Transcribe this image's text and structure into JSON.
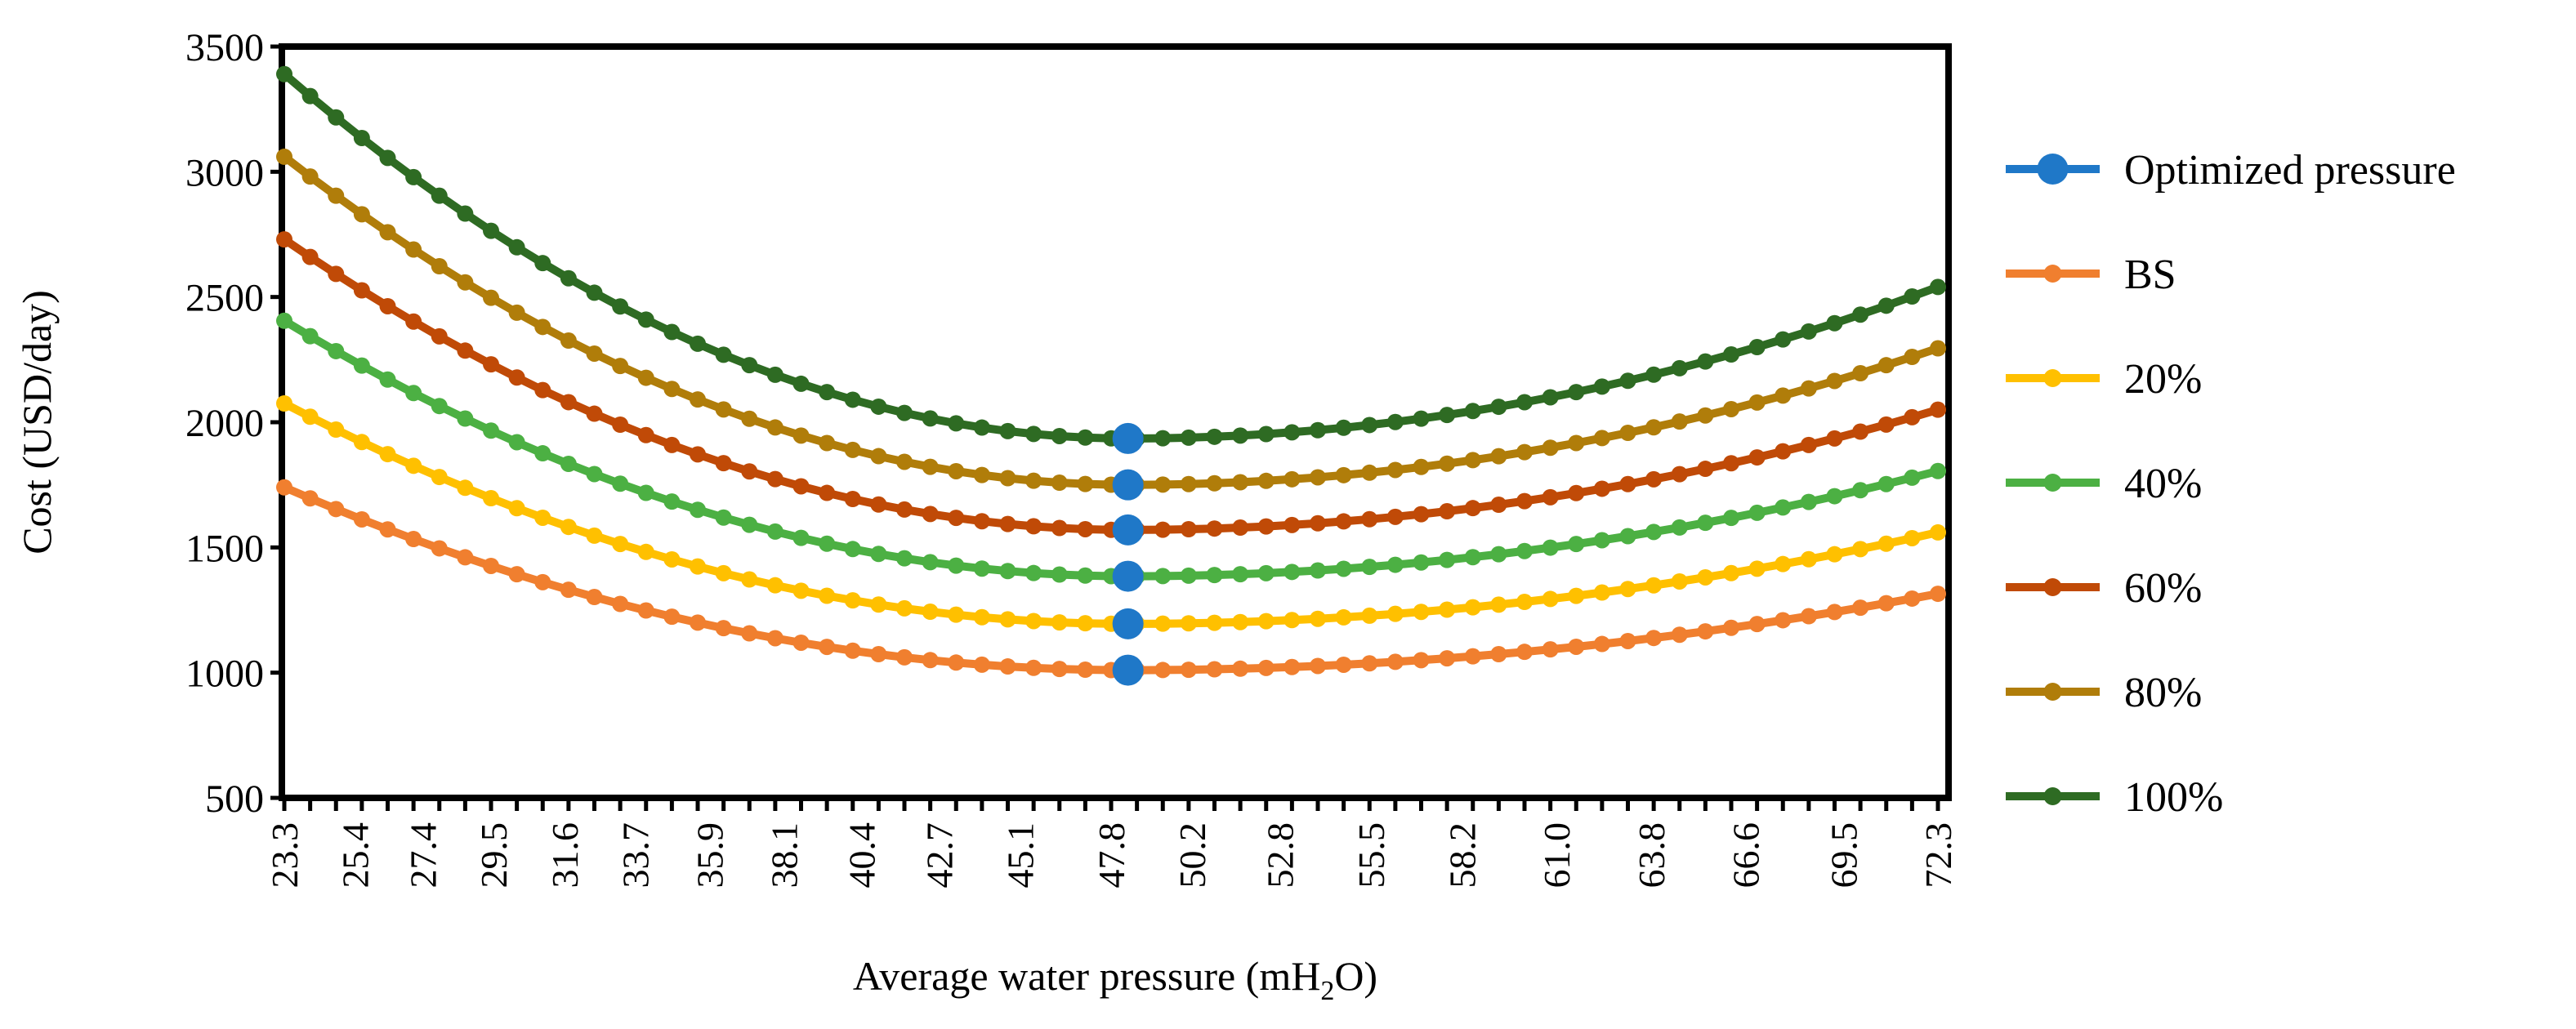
{
  "chart_data": {
    "type": "line",
    "title": "",
    "xlabel_main": "Average water pressure (mH",
    "xlabel_sub": "2",
    "xlabel_tail": "O)",
    "ylabel": "Cost (USD/day)",
    "ylim": [
      500,
      3500
    ],
    "yticks": [
      "500",
      "1000",
      "1500",
      "2000",
      "2500",
      "3000",
      "3500"
    ],
    "x_start": 23.3,
    "x_end": 72.3,
    "n_points": 65,
    "xtick_labels": [
      "23.3",
      "25.4",
      "27.4",
      "29.5",
      "31.6",
      "33.7",
      "35.9",
      "38.1",
      "40.4",
      "42.7",
      "45.1",
      "47.8",
      "50.2",
      "52.8",
      "55.5",
      "58.2",
      "61.0",
      "63.8",
      "66.6",
      "69.5",
      "72.3"
    ],
    "optimum_x": 48.3,
    "series": [
      {
        "name": "100%",
        "color": "#2e6b23",
        "start": 3390,
        "min": 1935,
        "end": 2540
      },
      {
        "name": "80%",
        "color": "#b07d0a",
        "start": 3060,
        "min": 1750,
        "end": 2295
      },
      {
        "name": "60%",
        "color": "#c04a07",
        "start": 2730,
        "min": 1570,
        "end": 2050
      },
      {
        "name": "40%",
        "color": "#4cb043",
        "start": 2405,
        "min": 1385,
        "end": 1805
      },
      {
        "name": "20%",
        "color": "#ffc000",
        "start": 2075,
        "min": 1195,
        "end": 1560
      },
      {
        "name": "BS",
        "color": "#f07f2f",
        "start": 1740,
        "min": 1010,
        "end": 1315
      }
    ],
    "optimized": {
      "name": "Optimized pressure",
      "color": "#1f78c8",
      "values": [
        1935,
        1750,
        1570,
        1385,
        1195,
        1010
      ]
    },
    "legend": {
      "position": "right",
      "entries": [
        {
          "label": "Optimized pressure",
          "color": "#1f78c8"
        },
        {
          "label": "BS",
          "color": "#f07f2f"
        },
        {
          "label": "20%",
          "color": "#ffc000"
        },
        {
          "label": "40%",
          "color": "#4cb043"
        },
        {
          "label": "60%",
          "color": "#c04a07"
        },
        {
          "label": "80%",
          "color": "#b07d0a"
        },
        {
          "label": "100%",
          "color": "#2e6b23"
        }
      ]
    }
  }
}
